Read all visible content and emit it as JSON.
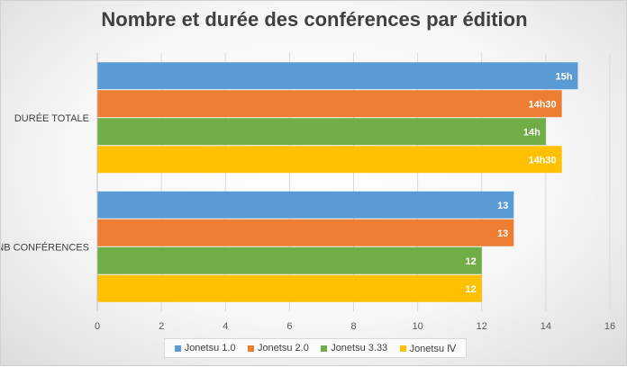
{
  "title": "Nombre et durée des conférences par édition",
  "chart_data": {
    "type": "bar",
    "orientation": "horizontal",
    "title": "Nombre et durée des conférences par édition",
    "categories": [
      "DURÉE TOTALE",
      "NB CONFÉRENCES"
    ],
    "series": [
      {
        "name": "Jonetsu 1.0",
        "color": "#5b9bd5",
        "values": [
          15,
          13
        ],
        "labels": [
          "15h",
          "13"
        ]
      },
      {
        "name": "Jonetsu 2.0",
        "color": "#ed7d31",
        "values": [
          14.5,
          13
        ],
        "labels": [
          "14h30",
          "13"
        ]
      },
      {
        "name": "Jonetsu 3.33",
        "color": "#70ad47",
        "values": [
          14,
          12
        ],
        "labels": [
          "14h",
          "12"
        ]
      },
      {
        "name": "Jonetsu Ⅳ",
        "color": "#ffc000",
        "values": [
          14.5,
          12
        ],
        "labels": [
          "14h30",
          "12"
        ]
      }
    ],
    "xlim": [
      0,
      16
    ],
    "xticks": [
      "0",
      "2",
      "4",
      "6",
      "8",
      "10",
      "12",
      "14",
      "16"
    ],
    "grid": true,
    "legend_position": "bottom"
  }
}
